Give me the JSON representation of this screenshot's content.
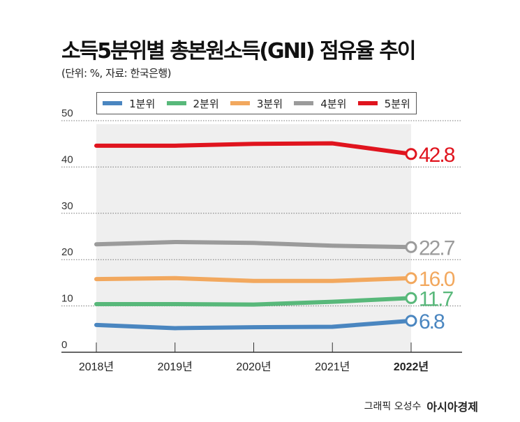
{
  "title": "소득5분위별 총본원소득(GNI) 점유율 추이",
  "subtitle": "(단위: %, 자료: 한국은행)",
  "credit": {
    "author": "그래픽 오성수",
    "brand": "아시아경제"
  },
  "chart_data": {
    "type": "line",
    "categories": [
      "2018년",
      "2019년",
      "2020년",
      "2021년",
      "2022년"
    ],
    "ylim": [
      0,
      50
    ],
    "yticks": [
      "0",
      "10",
      "20",
      "30",
      "40",
      "50"
    ],
    "grid": true,
    "legend": "top",
    "series": [
      {
        "name": "1분위",
        "color": "#4a86c0",
        "values": [
          5.9,
          5.2,
          5.4,
          5.5,
          6.8
        ],
        "end_label": "6.8"
      },
      {
        "name": "2분위",
        "color": "#58b87a",
        "values": [
          10.4,
          10.4,
          10.3,
          10.9,
          11.7
        ],
        "end_label": "11.7"
      },
      {
        "name": "3분위",
        "color": "#f2a85e",
        "values": [
          15.8,
          16.0,
          15.4,
          15.4,
          16.0
        ],
        "end_label": "16.0"
      },
      {
        "name": "4분위",
        "color": "#9b9b9b",
        "values": [
          23.3,
          23.8,
          23.6,
          23.0,
          22.7
        ],
        "end_label": "22.7"
      },
      {
        "name": "5분위",
        "color": "#e0141e",
        "values": [
          44.6,
          44.6,
          45.0,
          45.1,
          42.8
        ],
        "end_label": "42.8"
      }
    ]
  }
}
